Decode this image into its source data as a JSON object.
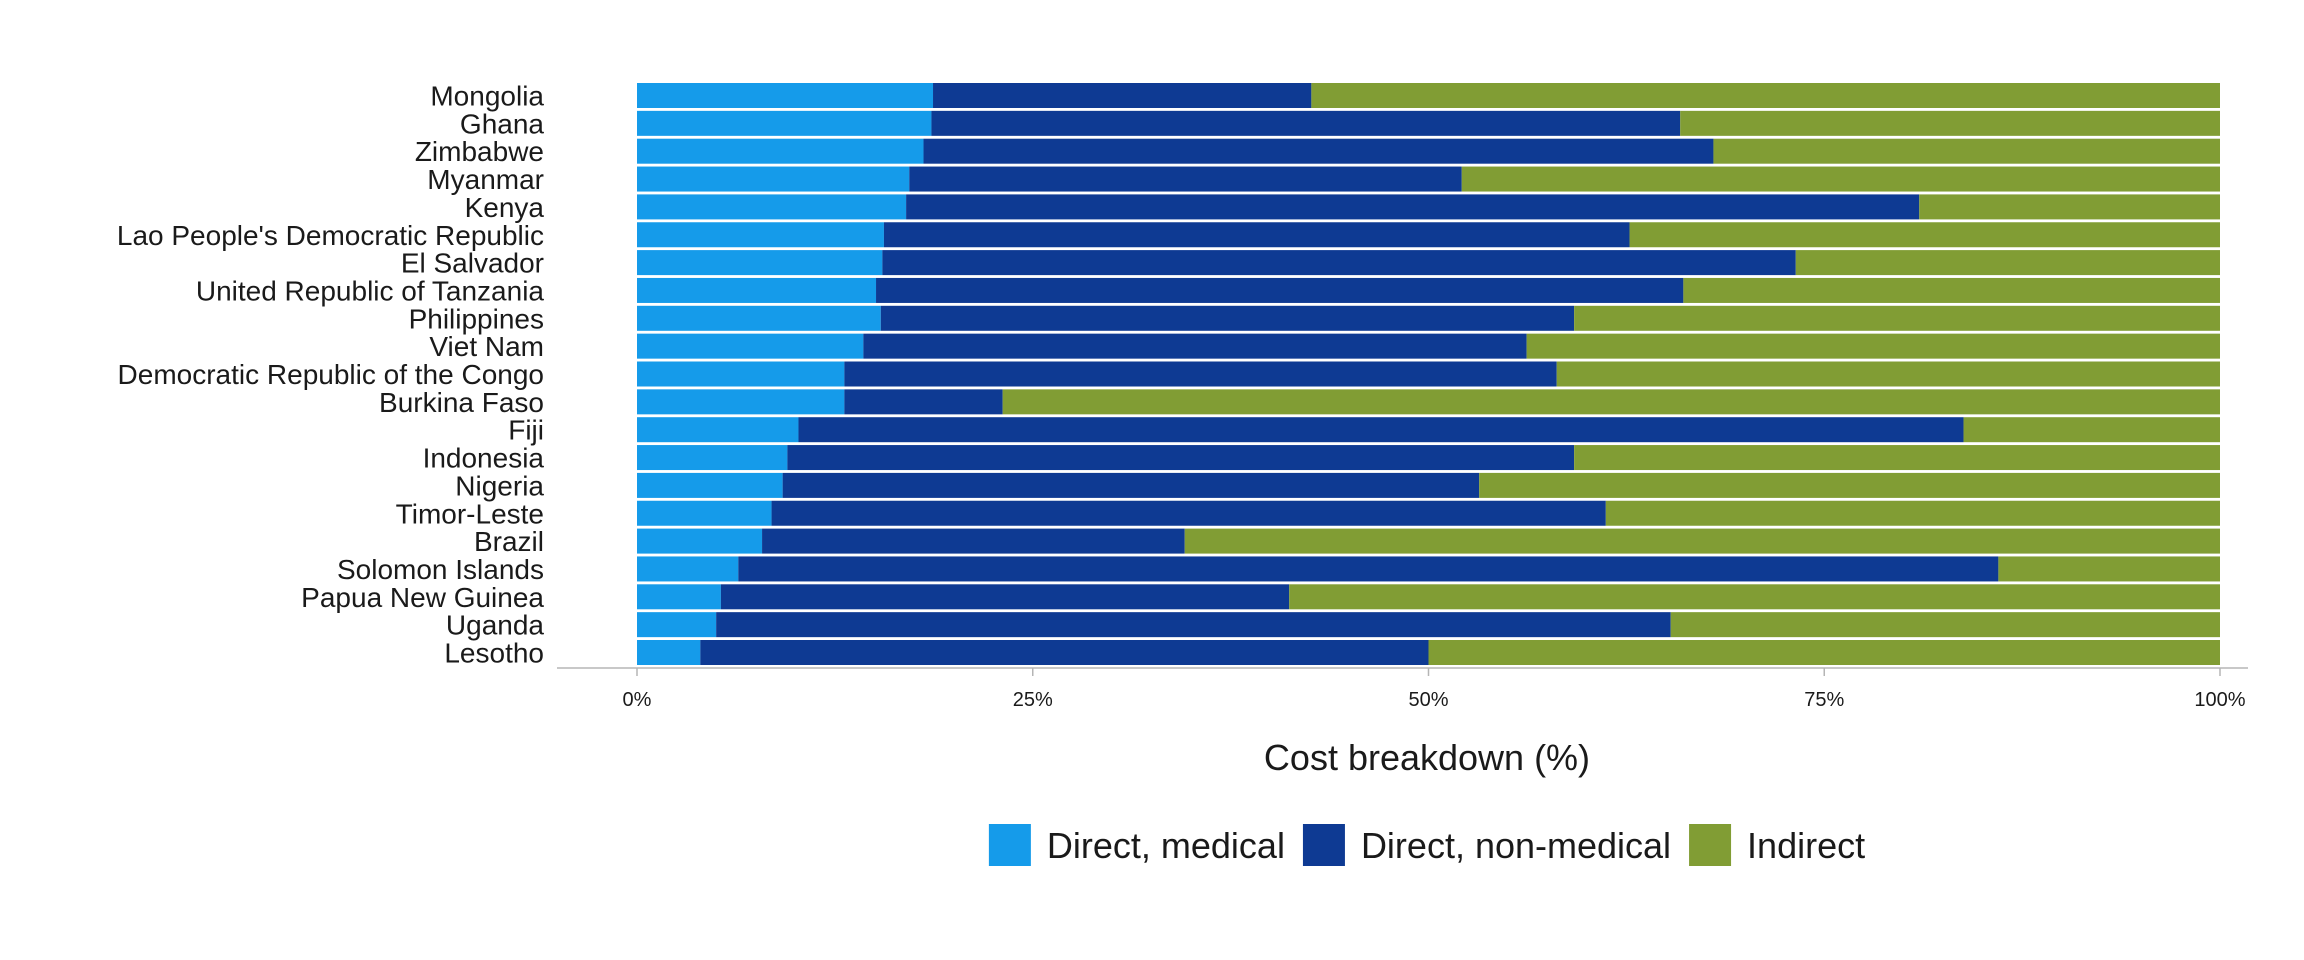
{
  "chart_data": {
    "type": "bar",
    "orientation": "horizontal",
    "stacked": true,
    "percent_stacked": true,
    "title": "",
    "xlabel": "Cost breakdown (%)",
    "ylabel": "",
    "xlim": [
      0,
      100
    ],
    "x_ticks": [
      0,
      25,
      50,
      75,
      100
    ],
    "x_tick_labels": [
      "0%",
      "25%",
      "50%",
      "75%",
      "100%"
    ],
    "grid": false,
    "legend_position": "bottom",
    "categories": [
      "Mongolia",
      "Ghana",
      "Zimbabwe",
      "Myanmar",
      "Kenya",
      "Lao People's Democratic Republic",
      "El Salvador",
      "United Republic of Tanzania",
      "Philippines",
      "Viet Nam",
      "Democratic Republic of the Congo",
      "Burkina Faso",
      "Fiji",
      "Indonesia",
      "Nigeria",
      "Timor-Leste",
      "Brazil",
      "Solomon Islands",
      "Papua New Guinea",
      "Uganda",
      "Lesotho"
    ],
    "series": [
      {
        "name": "Direct, medical",
        "color": "#159BEA",
        "values": [
          18.7,
          18.6,
          18.1,
          17.2,
          17.0,
          15.6,
          15.5,
          15.1,
          15.4,
          14.3,
          13.1,
          13.1,
          10.2,
          9.5,
          9.2,
          8.5,
          7.9,
          6.4,
          5.3,
          5.0,
          4.0
        ]
      },
      {
        "name": "Direct, non-medical",
        "color": "#0E3A93",
        "values": [
          23.9,
          47.3,
          49.9,
          34.9,
          64.0,
          47.1,
          57.7,
          51.0,
          43.8,
          41.9,
          45.0,
          10.0,
          73.6,
          49.7,
          44.0,
          52.7,
          26.7,
          79.6,
          35.9,
          60.3,
          46.0
        ]
      },
      {
        "name": "Indirect",
        "color": "#819D34",
        "values": [
          57.4,
          34.1,
          32.0,
          47.9,
          19.0,
          37.3,
          26.8,
          33.9,
          40.8,
          43.8,
          41.9,
          76.9,
          16.2,
          40.8,
          46.8,
          38.8,
          65.4,
          14.0,
          58.8,
          34.7,
          50.0
        ]
      }
    ]
  }
}
